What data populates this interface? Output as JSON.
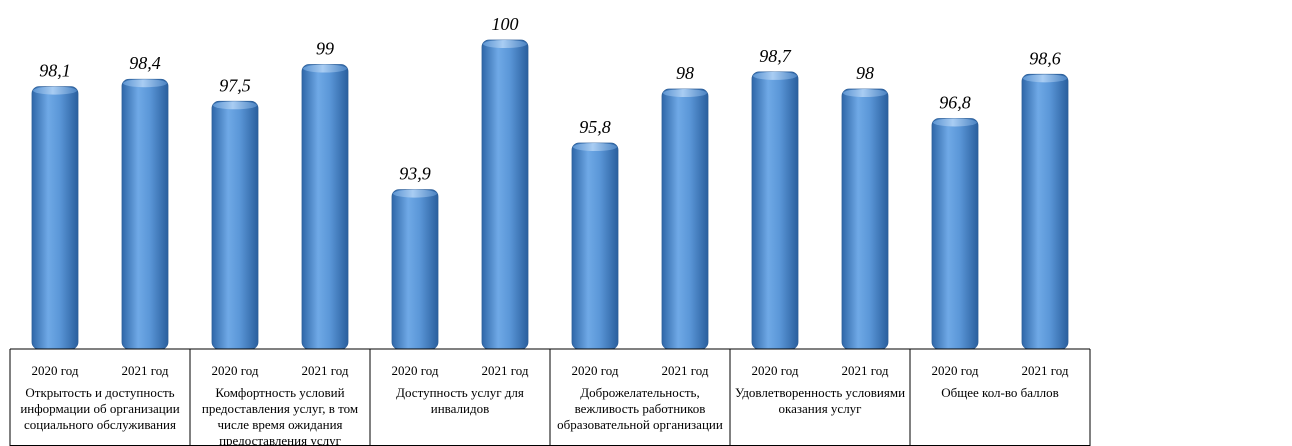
{
  "chart_data": {
    "type": "bar",
    "groups": [
      {
        "category": "Открытость и доступность информации об организации социального обслуживания",
        "category_lines": [
          "Открытость и доступность",
          "информации об организации",
          "социального обслуживания"
        ],
        "bars": [
          {
            "year": "2020 год",
            "value": 98.1,
            "label": "98,1"
          },
          {
            "year": "2021 год",
            "value": 98.4,
            "label": "98,4"
          }
        ]
      },
      {
        "category": "Комфортность условий предоставления услуг, в том числе время ожидания предоставления услуг",
        "category_lines": [
          "Комфортность условий",
          "предоставления услуг, в том",
          "числе время ожидания",
          "предоставления услуг"
        ],
        "bars": [
          {
            "year": "2020 год",
            "value": 97.5,
            "label": "97,5"
          },
          {
            "year": "2021 год",
            "value": 99,
            "label": "99"
          }
        ]
      },
      {
        "category": "Доступность услуг для инвалидов",
        "category_lines": [
          "Доступность услуг для",
          "инвалидов"
        ],
        "bars": [
          {
            "year": "2020 год",
            "value": 93.9,
            "label": "93,9"
          },
          {
            "year": "2021 год",
            "value": 100,
            "label": "100"
          }
        ]
      },
      {
        "category": "Доброжелательность, вежливость работников образовательной организации",
        "category_lines": [
          "Доброжелательность,",
          "вежливость работников",
          "образовательной организации"
        ],
        "bars": [
          {
            "year": "2020 год",
            "value": 95.8,
            "label": "95,8"
          },
          {
            "year": "2021 год",
            "value": 98,
            "label": "98"
          }
        ]
      },
      {
        "category": "Удовлетворенность условиями оказания услуг",
        "category_lines": [
          "Удовлетворенность условиями",
          "оказания услуг"
        ],
        "bars": [
          {
            "year": "2020 год",
            "value": 98.7,
            "label": "98,7"
          },
          {
            "year": "2021 год",
            "value": 98,
            "label": "98"
          }
        ]
      },
      {
        "category": "Общее кол-во баллов",
        "category_lines": [
          "Общее кол-во баллов"
        ],
        "bars": [
          {
            "year": "2020 год",
            "value": 96.8,
            "label": "96,8"
          },
          {
            "year": "2021 год",
            "value": 98.6,
            "label": "98,6"
          }
        ]
      }
    ],
    "ylim": [
      87.4,
      100
    ],
    "bar_color": "#4a86c6",
    "grid": false,
    "legend": "none"
  }
}
